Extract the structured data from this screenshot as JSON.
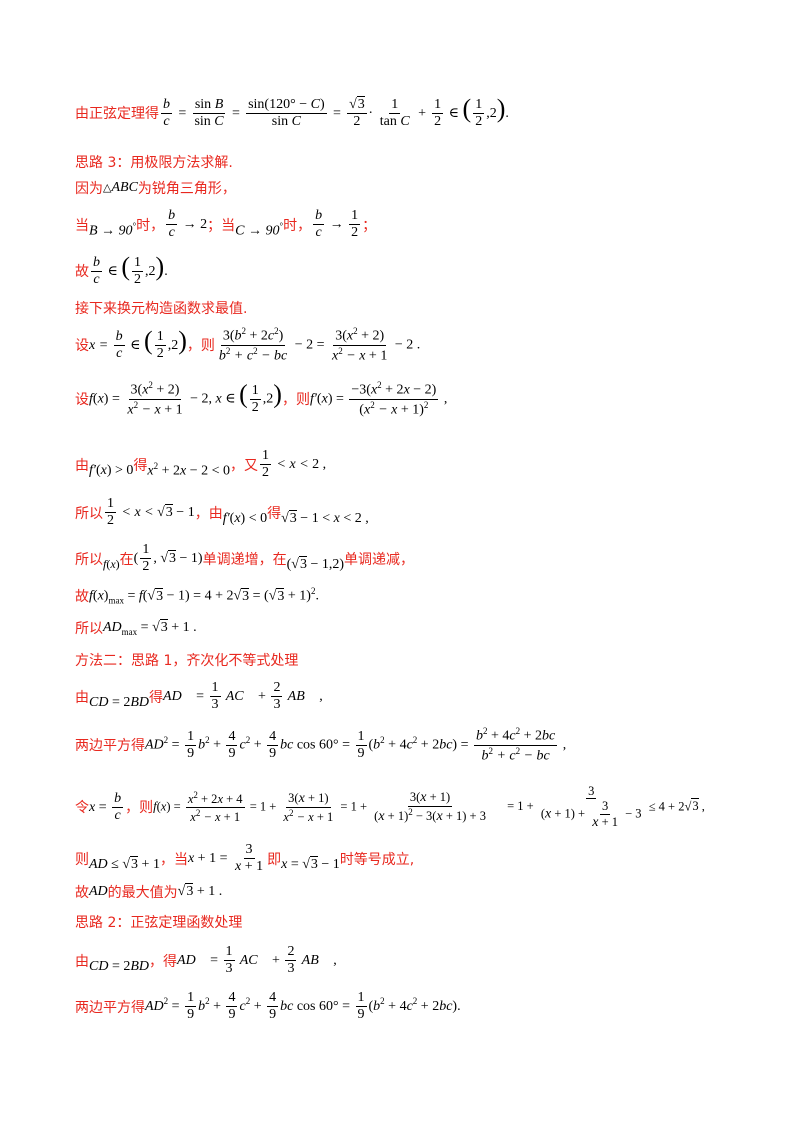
{
  "lines": {
    "l01": "由正弦定理得",
    "l02": "思路 3：用极限方法求解.",
    "l03a": "因为",
    "l03b": "为锐角三角形，",
    "l04a": "当",
    "l04b": "时，",
    "l04c": "；当",
    "l04d": "时，",
    "l04e": "；",
    "l05": "故",
    "l06": "接下来换元构造函数求最值.",
    "l07a": "设",
    "l07b": "，则",
    "l08a": "设",
    "l08b": "，则",
    "l09a": "由",
    "l09b": "得",
    "l09c": "，又",
    "l10a": "所以",
    "l10b": "，由",
    "l10c": "得",
    "l11a": "所以",
    "l11b": "在",
    "l11c": "单调递增，在",
    "l11d": "单调递减，",
    "l12": "故",
    "l13": "所以",
    "l14": "方法二：思路 1，齐次化不等式处理",
    "l15a": "由",
    "l15b": "得",
    "l16": "两边平方得",
    "l17a": "令",
    "l17b": "，则",
    "l18a": "则",
    "l18b": "，当",
    "l18c": "即",
    "l18d": "时等号成立,",
    "l19a": "故",
    "l19b": "的最大值为",
    "l20": "思路 2：正弦定理函数处理",
    "l21a": "由",
    "l21b": "，得",
    "l22": "两边平方得"
  }
}
